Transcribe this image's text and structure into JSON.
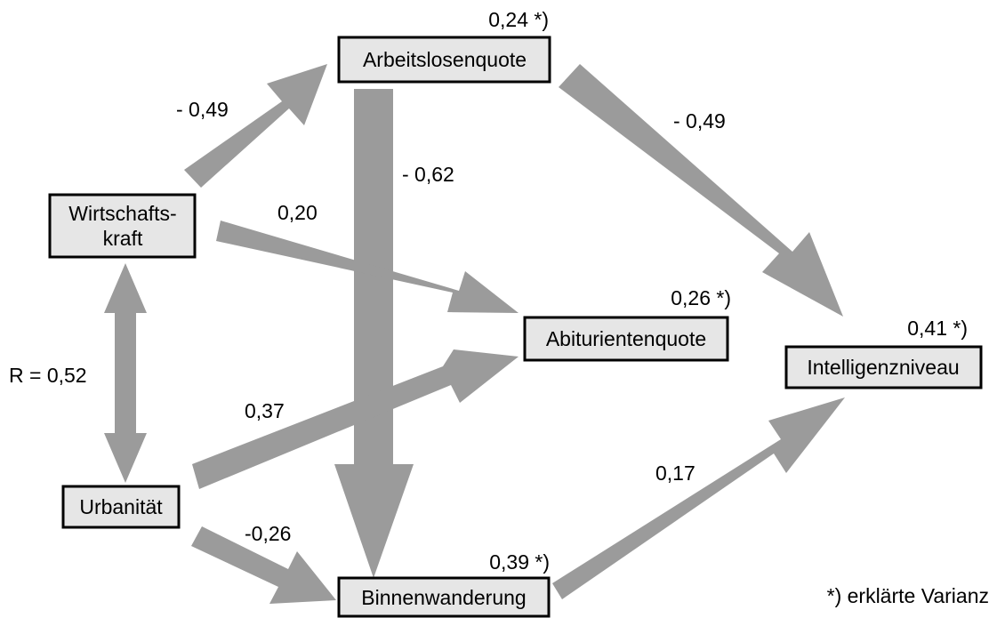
{
  "nodes": {
    "arbeitslosenquote": {
      "label": "Arbeitslosenquote",
      "variance": "0,24 *)"
    },
    "wirtschaftskraft": {
      "line1": "Wirtschafts-",
      "line2": "kraft"
    },
    "abiturientenquote": {
      "label": "Abiturientenquote",
      "variance": "0,26 *)"
    },
    "intelligenzniveau": {
      "label": "Intelligenzniveau",
      "variance": "0,41 *)"
    },
    "urbanitaet": {
      "label": "Urbanität"
    },
    "binnenwanderung": {
      "label": "Binnenwanderung",
      "variance": "0,39 *)"
    }
  },
  "paths": {
    "wirtschaftskraft_arbeitslosenquote": "- 0,49",
    "arbeitslosenquote_binnenwanderung": "- 0,62",
    "arbeitslosenquote_intelligenzniveau": "- 0,49",
    "wirtschaftskraft_abiturientenquote": "0,20",
    "urbanitaet_abiturientenquote": "0,37",
    "urbanitaet_binnenwanderung": "-0,26",
    "binnenwanderung_intelligenzniveau": "0,17",
    "correlation_wirtschaftskraft_urbanitaet": "R = 0,52"
  },
  "legend": {
    "note": "*) erklärte Varianz"
  },
  "colors": {
    "arrow": "#9b9b9b",
    "box_fill": "#e6e6e6",
    "box_stroke": "#000000"
  }
}
